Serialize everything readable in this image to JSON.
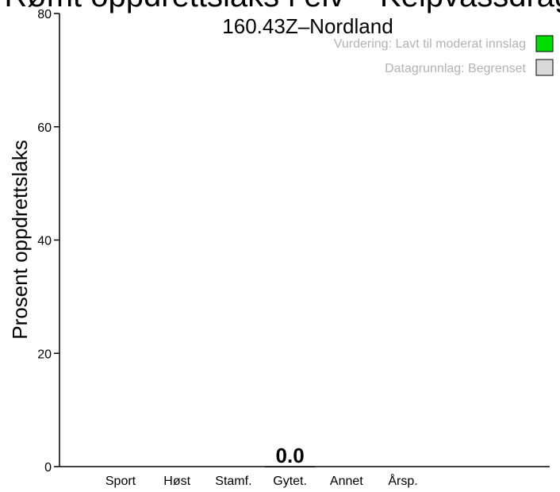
{
  "chart_data": {
    "type": "bar",
    "title": "Rømt oppdrettslaks i elv – Kelpvassdraget",
    "subtitle": "160.43Z–Nordland",
    "ylabel": "Prosent oppdrettslaks",
    "xlabel": "",
    "categories": [
      "Sport",
      "Høst",
      "Stamf.",
      "Gytet.",
      "Annet",
      "Årsp."
    ],
    "values": [
      null,
      null,
      null,
      0.0,
      null,
      null
    ],
    "data_labels": [
      "",
      "",
      "",
      "0.0",
      "",
      ""
    ],
    "ylim": [
      0,
      80
    ],
    "y_ticks": [
      "0",
      "20",
      "40",
      "60",
      "80"
    ],
    "grid": false,
    "legend": {
      "position": "top-right",
      "entries": [
        {
          "label": "Vurdering: Lavt til moderat innslag",
          "color": "#00dd00"
        },
        {
          "label": "Datagrunnlag: Begrenset",
          "color": "#d9d9d9"
        }
      ]
    },
    "colors": {
      "axis": "#000000",
      "legend_text": "#b3b3b3"
    }
  }
}
